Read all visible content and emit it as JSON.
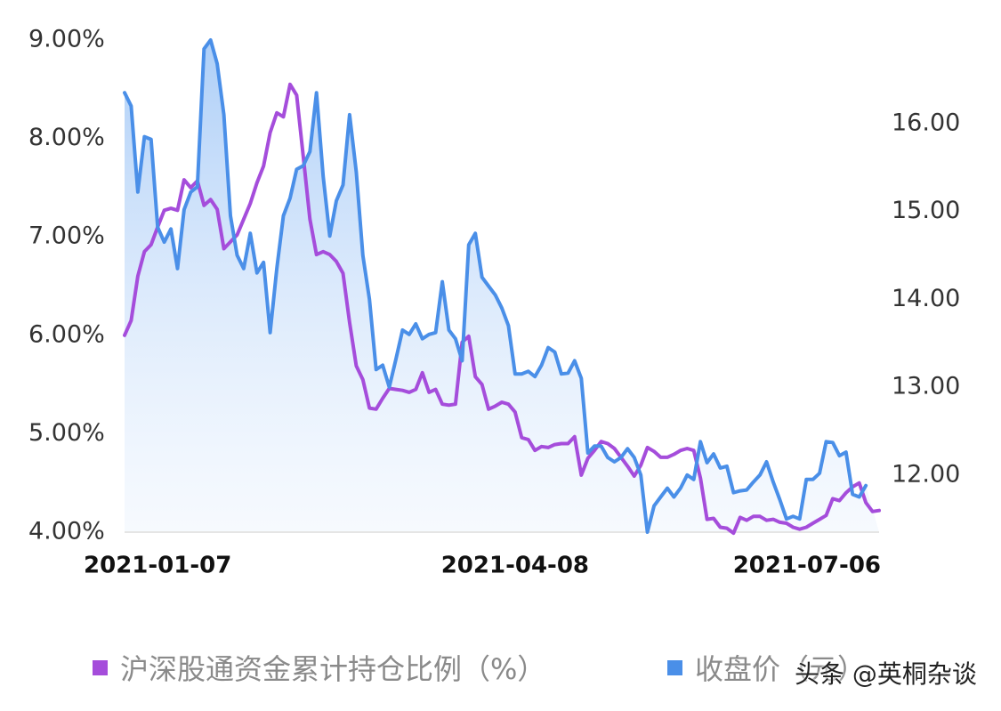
{
  "chart_data": {
    "type": "line",
    "title": "",
    "x_ticks": [
      "2021-01-07",
      "2021-04-08",
      "2021-07-06"
    ],
    "y_left": {
      "label": "",
      "ticks": [
        "4.00%",
        "5.00%",
        "6.00%",
        "7.00%",
        "8.00%",
        "9.00%"
      ],
      "range": [
        4.0,
        9.0
      ],
      "unit": "%"
    },
    "y_right": {
      "label": "",
      "ticks": [
        "12.00",
        "13.00",
        "14.00",
        "15.00",
        "16.00"
      ],
      "range": [
        11.35,
        16.95
      ]
    },
    "legend_position": "bottom",
    "grid": false,
    "series": [
      {
        "name": "沪深股通资金累计持仓比例（%）",
        "axis": "left",
        "color": "#a54ddb",
        "values": [
          6.0,
          6.15,
          6.6,
          6.85,
          6.92,
          7.1,
          7.27,
          7.29,
          7.27,
          7.58,
          7.5,
          7.57,
          7.32,
          7.38,
          7.28,
          6.88,
          6.95,
          7.02,
          7.18,
          7.34,
          7.55,
          7.72,
          8.06,
          8.26,
          8.22,
          8.55,
          8.44,
          7.82,
          7.18,
          6.82,
          6.85,
          6.82,
          6.75,
          6.63,
          6.13,
          5.69,
          5.55,
          5.26,
          5.25,
          5.36,
          5.46,
          5.45,
          5.44,
          5.42,
          5.45,
          5.62,
          5.42,
          5.45,
          5.3,
          5.29,
          5.3,
          5.93,
          5.99,
          5.58,
          5.5,
          5.25,
          5.28,
          5.32,
          5.3,
          5.22,
          4.96,
          4.94,
          4.83,
          4.87,
          4.86,
          4.89,
          4.9,
          4.9,
          4.97,
          4.58,
          4.75,
          4.83,
          4.92,
          4.9,
          4.85,
          4.76,
          4.67,
          4.57,
          4.68,
          4.86,
          4.82,
          4.76,
          4.76,
          4.79,
          4.83,
          4.85,
          4.83,
          4.55,
          4.13,
          4.14,
          4.05,
          4.04,
          3.99,
          4.15,
          4.12,
          4.16,
          4.16,
          4.12,
          4.13,
          4.1,
          4.09,
          4.05,
          4.03,
          4.05,
          4.09,
          4.13,
          4.17,
          4.34,
          4.32,
          4.4,
          4.46,
          4.5,
          4.3,
          4.21,
          4.22
        ]
      },
      {
        "name": "收盘价（元）",
        "axis": "right",
        "color": "#4a8fe8",
        "values": [
          16.35,
          16.2,
          15.22,
          15.85,
          15.82,
          14.82,
          14.65,
          14.8,
          14.35,
          15.02,
          15.22,
          15.28,
          16.85,
          16.95,
          16.68,
          16.1,
          14.95,
          14.5,
          14.35,
          14.75,
          14.3,
          14.42,
          13.62,
          14.35,
          14.95,
          15.15,
          15.48,
          15.52,
          15.68,
          16.35,
          15.4,
          14.72,
          15.12,
          15.3,
          16.1,
          15.45,
          14.5,
          14.0,
          13.2,
          13.25,
          13.0,
          13.32,
          13.65,
          13.6,
          13.72,
          13.55,
          13.6,
          13.62,
          14.2,
          13.65,
          13.55,
          13.3,
          14.62,
          14.75,
          14.25,
          14.15,
          14.05,
          13.9,
          13.7,
          13.15,
          13.15,
          13.18,
          13.12,
          13.25,
          13.45,
          13.4,
          13.15,
          13.16,
          13.3,
          13.1,
          12.25,
          12.33,
          12.33,
          12.2,
          12.15,
          12.2,
          12.3,
          12.2,
          12.0,
          11.35,
          11.65,
          11.75,
          11.85,
          11.75,
          11.85,
          12.0,
          11.95,
          12.38,
          12.14,
          12.24,
          12.08,
          12.1,
          11.8,
          11.82,
          11.83,
          11.92,
          12.0,
          12.15,
          11.92,
          11.72,
          11.5,
          11.53,
          11.5,
          11.95,
          11.95,
          12.02,
          12.38,
          12.37,
          12.22,
          12.26,
          11.78,
          11.75,
          11.88
        ]
      }
    ]
  },
  "watermark": "头条 @英桐杂谈"
}
